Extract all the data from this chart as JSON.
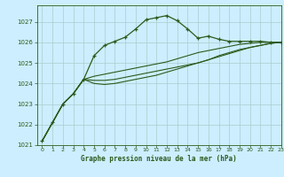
{
  "title": "Graphe pression niveau de la mer (hPa)",
  "background_color": "#cceeff",
  "line_color": "#2d5a1b",
  "grid_color": "#aacccc",
  "ylim": [
    1021,
    1027.8
  ],
  "xlim": [
    -0.5,
    23
  ],
  "yticks": [
    1021,
    1022,
    1023,
    1024,
    1025,
    1026,
    1027
  ],
  "xticks": [
    0,
    1,
    2,
    3,
    4,
    5,
    6,
    7,
    8,
    9,
    10,
    11,
    12,
    13,
    14,
    15,
    16,
    17,
    18,
    19,
    20,
    21,
    22,
    23
  ],
  "series1_x": [
    0,
    1,
    2,
    3,
    4,
    5,
    6,
    7,
    8,
    9,
    10,
    11,
    12,
    13,
    14,
    15,
    16,
    17,
    18,
    19,
    20,
    21,
    22,
    23
  ],
  "series1_y": [
    1021.2,
    1022.1,
    1023.0,
    1023.5,
    1024.2,
    1025.35,
    1025.85,
    1026.05,
    1026.25,
    1026.65,
    1027.1,
    1027.2,
    1027.3,
    1027.05,
    1026.65,
    1026.2,
    1026.3,
    1026.15,
    1026.05,
    1026.05,
    1026.05,
    1026.05,
    1026.0,
    1026.0
  ],
  "series2_x": [
    0,
    1,
    2,
    3,
    4,
    5,
    6,
    7,
    8,
    9,
    10,
    11,
    12,
    13,
    14,
    15,
    16,
    17,
    18,
    19,
    20,
    21,
    22,
    23
  ],
  "series2_y": [
    1021.2,
    1022.1,
    1023.0,
    1023.5,
    1024.2,
    1024.35,
    1024.45,
    1024.55,
    1024.65,
    1024.75,
    1024.85,
    1024.95,
    1025.05,
    1025.2,
    1025.35,
    1025.5,
    1025.6,
    1025.7,
    1025.8,
    1025.9,
    1025.95,
    1026.0,
    1026.0,
    1026.0
  ],
  "series3_x": [
    0,
    1,
    2,
    3,
    4,
    5,
    6,
    7,
    8,
    9,
    10,
    11,
    12,
    13,
    14,
    15,
    16,
    17,
    18,
    19,
    20,
    21,
    22,
    23
  ],
  "series3_y": [
    1021.2,
    1022.1,
    1023.0,
    1023.5,
    1024.2,
    1024.15,
    1024.15,
    1024.2,
    1024.3,
    1024.4,
    1024.5,
    1024.6,
    1024.7,
    1024.8,
    1024.9,
    1025.0,
    1025.15,
    1025.3,
    1025.45,
    1025.6,
    1025.75,
    1025.85,
    1025.95,
    1026.0
  ],
  "series4_x": [
    0,
    1,
    2,
    3,
    4,
    5,
    6,
    7,
    8,
    9,
    10,
    11,
    12,
    13,
    14,
    15,
    16,
    17,
    18,
    19,
    20,
    21,
    22,
    23
  ],
  "series4_y": [
    1021.2,
    1022.1,
    1023.0,
    1023.5,
    1024.2,
    1024.0,
    1023.95,
    1024.0,
    1024.1,
    1024.2,
    1024.3,
    1024.4,
    1024.55,
    1024.7,
    1024.85,
    1025.0,
    1025.15,
    1025.35,
    1025.5,
    1025.65,
    1025.75,
    1025.85,
    1025.95,
    1026.0
  ]
}
